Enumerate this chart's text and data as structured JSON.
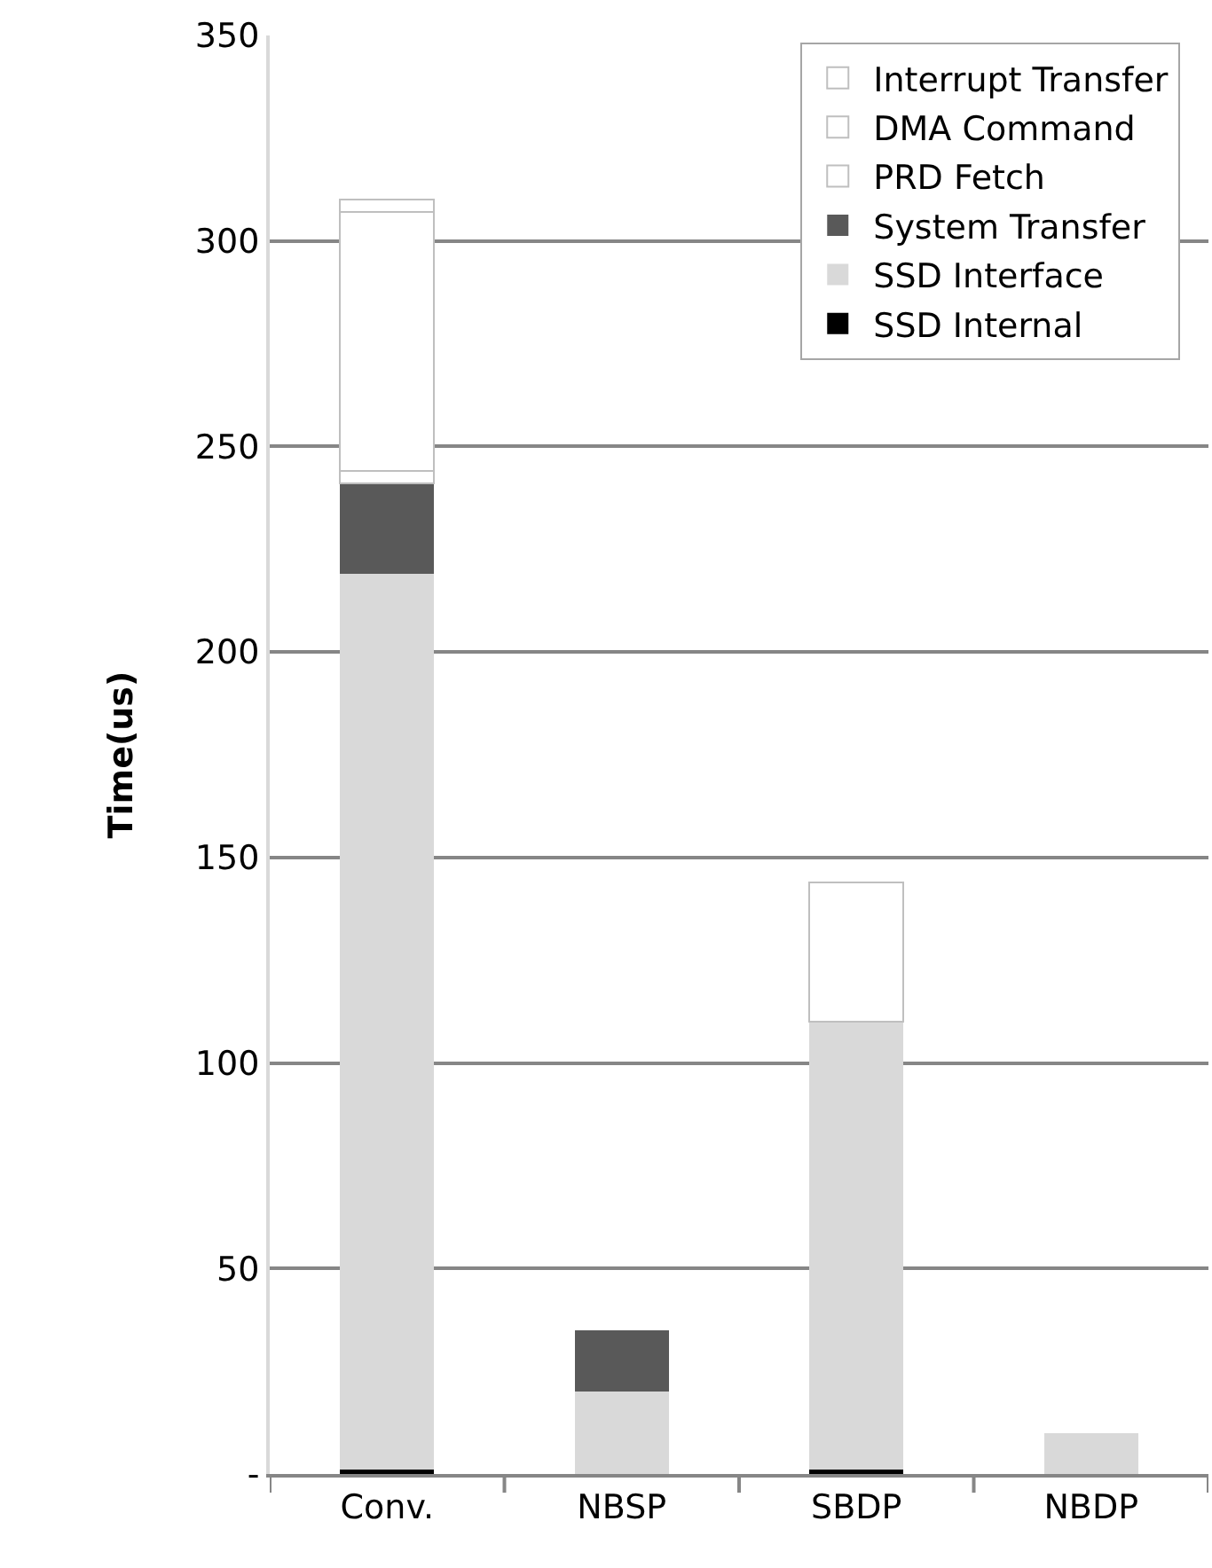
{
  "chart_data": {
    "type": "bar",
    "stacked": true,
    "ylabel": "Time(us)",
    "categories": [
      "Conv.",
      "NBSP",
      "SBDP",
      "NBDP"
    ],
    "series": [
      {
        "name": "SSD Internal",
        "color": "#000000",
        "values": [
          1,
          null,
          1,
          null
        ]
      },
      {
        "name": "SSD Interface",
        "color": "#d9d9d9",
        "values": [
          218,
          20,
          109,
          10
        ]
      },
      {
        "name": "System Transfer",
        "color": "#595959",
        "values": [
          22,
          15,
          null,
          null
        ]
      },
      {
        "name": "PRD Fetch",
        "color": "#ffffff",
        "values": [
          3,
          null,
          null,
          null
        ]
      },
      {
        "name": "DMA Command",
        "color": "#ffffff",
        "values": [
          63,
          null,
          34,
          null
        ]
      },
      {
        "name": "Interrupt Transfer",
        "color": "#ffffff",
        "values": [
          3,
          null,
          null,
          null
        ]
      }
    ],
    "ylim": [
      0,
      350
    ],
    "yticks": [
      {
        "value": 0,
        "label": "-"
      },
      50,
      100,
      150,
      200,
      250,
      300,
      350
    ],
    "grid": "y",
    "legend": "top right"
  }
}
